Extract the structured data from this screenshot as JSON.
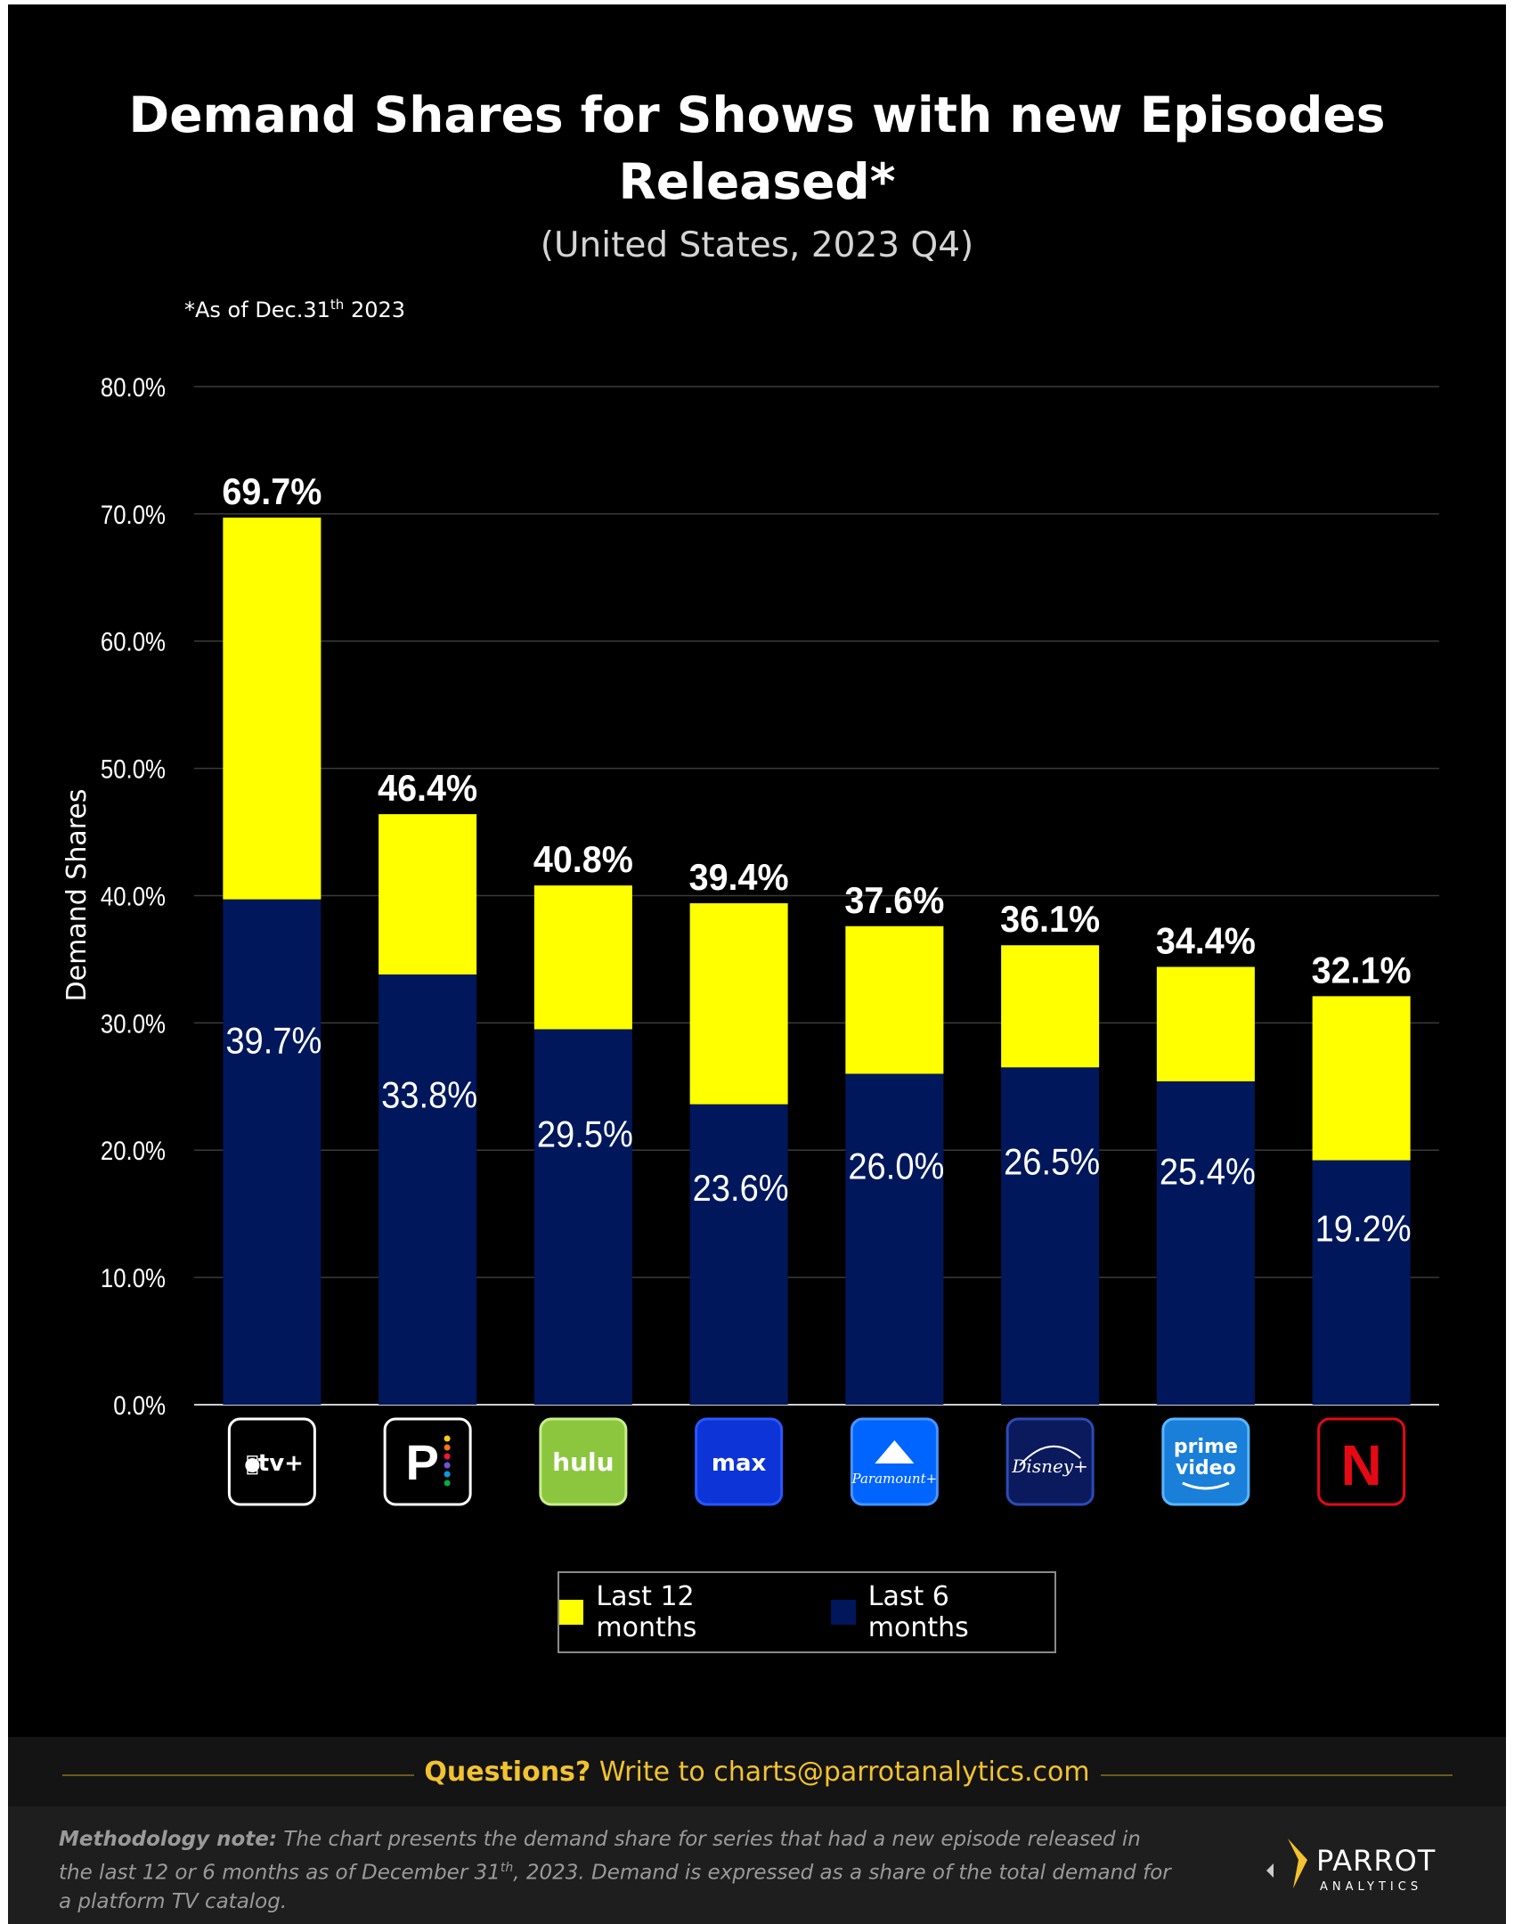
{
  "chart_data": {
    "type": "bar",
    "stacked": false,
    "title": "Demand Shares for Shows with new Episodes Released*",
    "subtitle": "(United States, 2023 Q4)",
    "note": {
      "prefix": "*As of Dec.31",
      "sup": "th",
      "suffix": " 2023"
    },
    "ylabel": "Demand Shares",
    "xlabel": "",
    "ylim": [
      0,
      80
    ],
    "yticks": [
      "0.0%",
      "10.0%",
      "20.0%",
      "30.0%",
      "40.0%",
      "50.0%",
      "60.0%",
      "70.0%",
      "80.0%"
    ],
    "grid": true,
    "categories": [
      "Apple TV+",
      "Peacock",
      "Hulu",
      "Max",
      "Paramount+",
      "Disney+",
      "Prime Video",
      "Netflix"
    ],
    "series": [
      {
        "name": "Last 12 months",
        "color": "#ffff00",
        "values": [
          69.7,
          46.4,
          40.8,
          39.4,
          37.6,
          36.1,
          34.4,
          32.1
        ],
        "labels": [
          "69.7%",
          "46.4%",
          "40.8%",
          "39.4%",
          "37.6%",
          "36.1%",
          "34.4%",
          "32.1%"
        ]
      },
      {
        "name": "Last 6 months",
        "color": "#00175c",
        "values": [
          39.7,
          33.8,
          29.5,
          23.6,
          26.0,
          26.5,
          25.4,
          19.2
        ],
        "labels": [
          "39.7%",
          "33.8%",
          "29.5%",
          "23.6%",
          "26.0%",
          "26.5%",
          "25.4%",
          "19.2%"
        ]
      }
    ],
    "legend": "bottom-center"
  },
  "logos": [
    {
      "name": "appletv-logo",
      "text": "tv+",
      "bg": "#000000",
      "border": "#ffffff",
      "fg": "#ffffff"
    },
    {
      "name": "peacock-logo",
      "text": "P",
      "bg": "#000000",
      "border": "#ffffff",
      "fg": "#ffffff"
    },
    {
      "name": "hulu-logo",
      "text": "hulu",
      "bg": "#8cc63f",
      "border": "#c8ee8a",
      "fg": "#ffffff"
    },
    {
      "name": "max-logo",
      "text": "max",
      "bg": "#0d34d6",
      "border": "#2a56ff",
      "fg": "#ffffff"
    },
    {
      "name": "paramount-logo",
      "text": "Paramount+",
      "bg": "#0064ff",
      "border": "#4a93ff",
      "fg": "#ffffff"
    },
    {
      "name": "disney-logo",
      "text": "Disney+",
      "bg": "#0b1a5c",
      "border": "#2e4bb5",
      "fg": "#ffffff"
    },
    {
      "name": "primevideo-logo",
      "line1": "prime",
      "line2": "video",
      "bg": "#1a7fd8",
      "border": "#58b6ff",
      "fg": "#ffffff"
    },
    {
      "name": "netflix-logo",
      "text": "N",
      "bg": "#000000",
      "border": "#e50914",
      "fg": "#e50914"
    }
  ],
  "footer": {
    "contact_bold": "Questions?",
    "contact_text": " Write to charts@parrotanalytics.com",
    "method_bold": "Methodology note:",
    "method_text_1": " The chart presents the demand share for series that had a new episode released in the last 12 or 6 months as of December 31",
    "method_sup": "th",
    "method_text_2": ", 2023. Demand is expressed as a share of the total demand for a platform TV catalog.",
    "brand_name": "PARROT",
    "brand_sub": "ANALYTICS",
    "brand_color": "#f2c230"
  }
}
